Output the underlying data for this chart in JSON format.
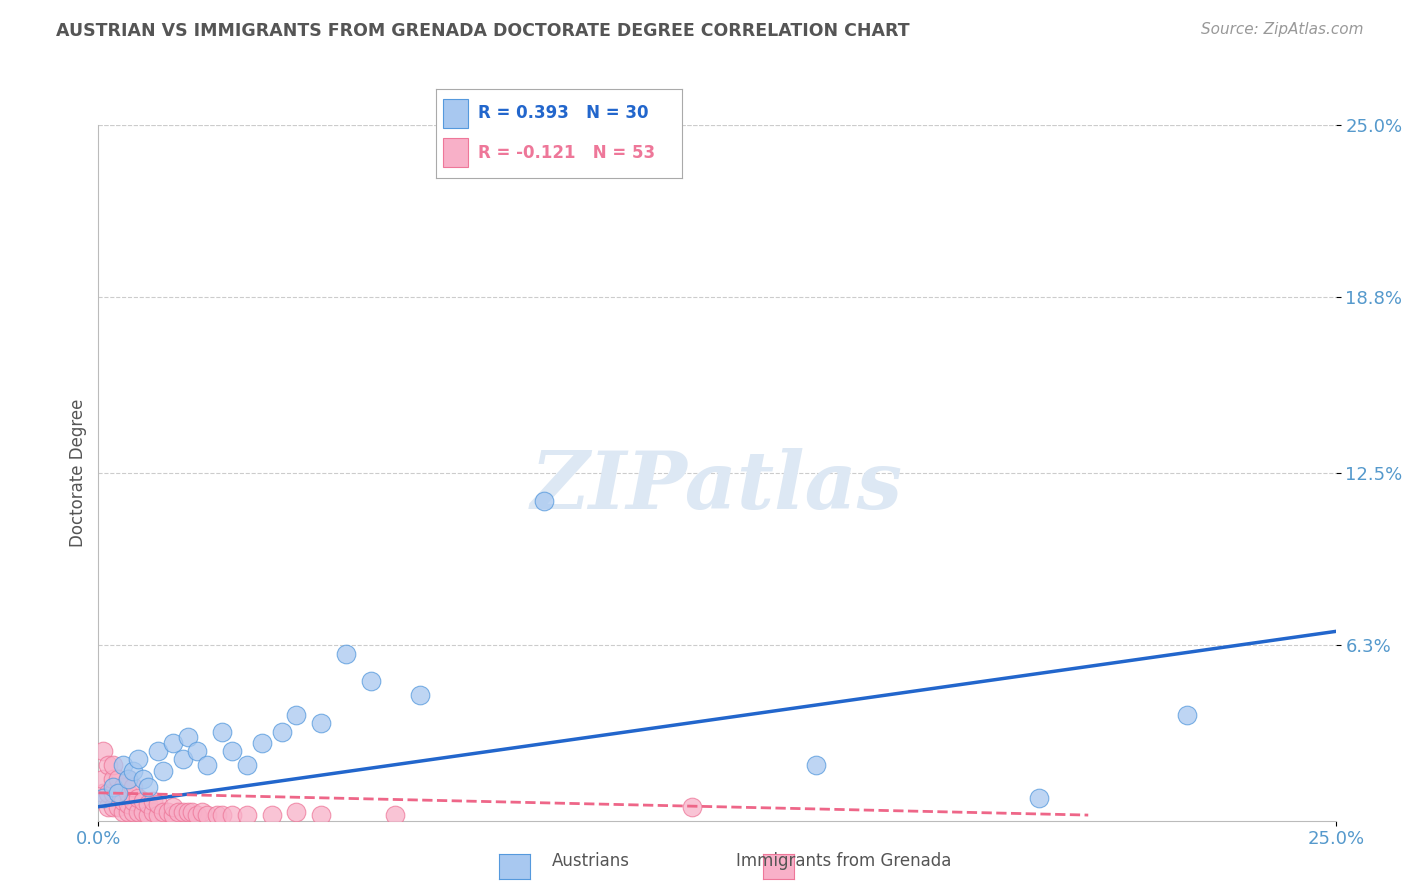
{
  "title": "AUSTRIAN VS IMMIGRANTS FROM GRENADA DOCTORATE DEGREE CORRELATION CHART",
  "source": "Source: ZipAtlas.com",
  "ylabel": "Doctorate Degree",
  "xlim": [
    0,
    0.25
  ],
  "ylim": [
    0,
    0.25
  ],
  "ytick_labels": [
    "6.3%",
    "12.5%",
    "18.8%",
    "25.0%"
  ],
  "ytick_values": [
    0.063,
    0.125,
    0.188,
    0.25
  ],
  "legend_blue_r": "R = 0.393",
  "legend_blue_n": "N = 30",
  "legend_pink_r": "R = -0.121",
  "legend_pink_n": "N = 53",
  "blue_scatter_color": "#a8c8f0",
  "blue_edge_color": "#5599dd",
  "pink_scatter_color": "#f8b0c8",
  "pink_edge_color": "#ee7799",
  "blue_line_color": "#2266cc",
  "pink_line_color": "#ee6688",
  "background_color": "#ffffff",
  "grid_color": "#cccccc",
  "title_color": "#555555",
  "axis_label_color": "#555555",
  "tick_label_color": "#5599cc",
  "watermark_color": "#dde8f4",
  "source_color": "#999999",
  "austrians_x": [
    0.001,
    0.003,
    0.004,
    0.005,
    0.006,
    0.007,
    0.008,
    0.009,
    0.01,
    0.012,
    0.013,
    0.015,
    0.017,
    0.018,
    0.02,
    0.022,
    0.025,
    0.027,
    0.03,
    0.033,
    0.037,
    0.04,
    0.045,
    0.05,
    0.055,
    0.065,
    0.09,
    0.145,
    0.19,
    0.22
  ],
  "austrians_y": [
    0.008,
    0.012,
    0.01,
    0.02,
    0.015,
    0.018,
    0.022,
    0.015,
    0.012,
    0.025,
    0.018,
    0.028,
    0.022,
    0.03,
    0.025,
    0.02,
    0.032,
    0.025,
    0.02,
    0.028,
    0.032,
    0.038,
    0.035,
    0.06,
    0.05,
    0.045,
    0.115,
    0.02,
    0.008,
    0.038
  ],
  "grenada_x": [
    0.001,
    0.001,
    0.001,
    0.002,
    0.002,
    0.002,
    0.003,
    0.003,
    0.003,
    0.003,
    0.004,
    0.004,
    0.004,
    0.005,
    0.005,
    0.005,
    0.006,
    0.006,
    0.006,
    0.006,
    0.007,
    0.007,
    0.007,
    0.008,
    0.008,
    0.009,
    0.009,
    0.01,
    0.01,
    0.011,
    0.011,
    0.012,
    0.012,
    0.013,
    0.014,
    0.015,
    0.015,
    0.016,
    0.017,
    0.018,
    0.019,
    0.02,
    0.021,
    0.022,
    0.024,
    0.025,
    0.027,
    0.03,
    0.035,
    0.04,
    0.045,
    0.06,
    0.12
  ],
  "grenada_y": [
    0.01,
    0.015,
    0.025,
    0.005,
    0.01,
    0.02,
    0.005,
    0.01,
    0.015,
    0.02,
    0.005,
    0.01,
    0.015,
    0.003,
    0.007,
    0.012,
    0.003,
    0.006,
    0.01,
    0.015,
    0.003,
    0.007,
    0.012,
    0.003,
    0.008,
    0.003,
    0.007,
    0.002,
    0.006,
    0.003,
    0.007,
    0.002,
    0.006,
    0.003,
    0.003,
    0.002,
    0.005,
    0.003,
    0.003,
    0.003,
    0.003,
    0.002,
    0.003,
    0.002,
    0.002,
    0.002,
    0.002,
    0.002,
    0.002,
    0.003,
    0.002,
    0.002,
    0.005
  ],
  "blue_line_x0": 0.0,
  "blue_line_y0": 0.005,
  "blue_line_x1": 0.25,
  "blue_line_y1": 0.068,
  "pink_line_x0": 0.0,
  "pink_line_y0": 0.01,
  "pink_line_x1": 0.2,
  "pink_line_y1": 0.002
}
